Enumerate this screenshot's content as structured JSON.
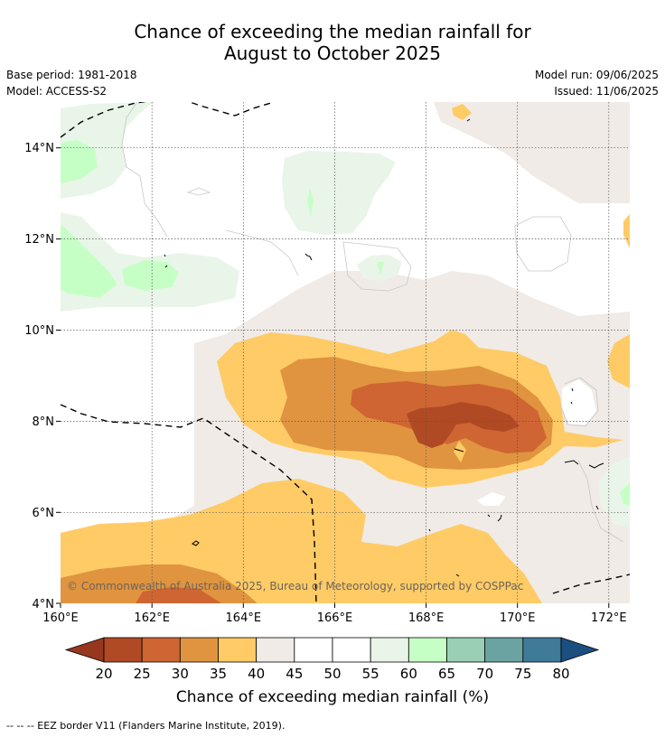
{
  "title": {
    "line1": "Chance of exceeding the median rainfall for",
    "line2": "August to October 2025"
  },
  "meta": {
    "base_period": "Base period: 1981-2018",
    "model": "Model: ACCESS-S2",
    "model_run": "Model run: 09/06/2025",
    "issued": "Issued: 11/06/2025"
  },
  "map": {
    "x_ticks": [
      "160°E",
      "162°E",
      "164°E",
      "166°E",
      "168°E",
      "170°E",
      "172°E"
    ],
    "y_ticks": [
      "14°N",
      "12°N",
      "10°N",
      "8°N",
      "6°N",
      "4°N"
    ],
    "copyright": "© Commonwealth of Australia 2025, Bureau of Meteorology, supported by COSPPac",
    "lon_range": [
      160,
      172.5
    ],
    "lat_range": [
      4,
      15
    ]
  },
  "colorbar": {
    "title": "Chance of exceeding median rainfall (%)",
    "labels": [
      "20",
      "25",
      "30",
      "35",
      "40",
      "45",
      "50",
      "55",
      "60",
      "65",
      "70",
      "75",
      "80"
    ],
    "colors": [
      "#b04a24",
      "#cf6533",
      "#e0943f",
      "#fecb66",
      "#f0ebe6",
      "#ffffff",
      "#ffffff",
      "#e9f5e9",
      "#c6ffc6",
      "#9acfb6",
      "#6ba3a3",
      "#3f7a99"
    ],
    "under_color": "#96381f",
    "over_color": "#1a4f80"
  },
  "footer": {
    "eez_note": "--  --  -- EEZ border V11 (Flanders Marine Institute, 2019)."
  }
}
